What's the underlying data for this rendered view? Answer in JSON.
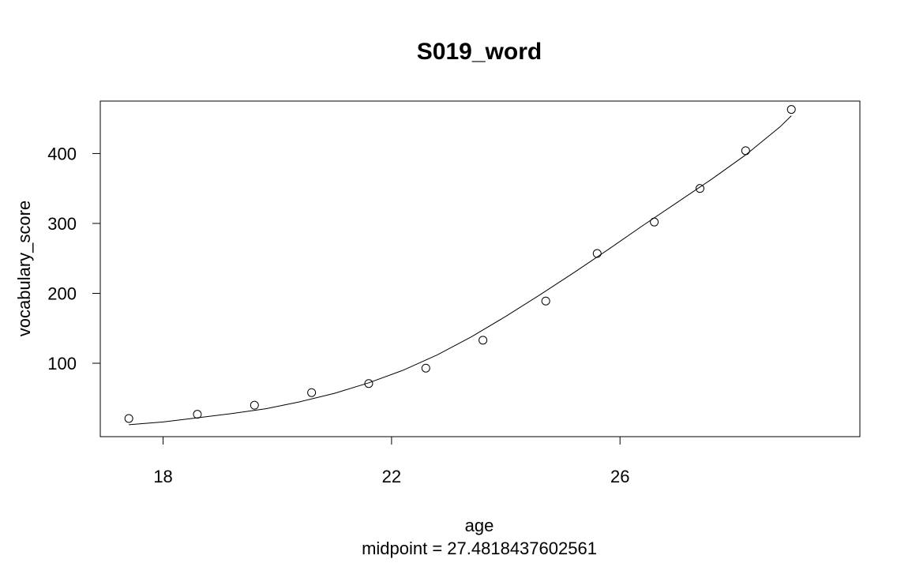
{
  "chart_data": {
    "type": "scatter",
    "title": "S019_word",
    "xlabel": "age",
    "ylabel": "vocabulary_score",
    "subtitle": "midpoint = 27.4818437602561",
    "xlim": [
      16.9,
      30.2
    ],
    "ylim": [
      -5,
      475
    ],
    "x_ticks": [
      18,
      22,
      26
    ],
    "y_ticks": [
      100,
      200,
      300,
      400
    ],
    "grid": false,
    "legend": "none",
    "points": {
      "x": [
        17.4,
        18.6,
        19.6,
        20.6,
        21.6,
        22.6,
        23.6,
        24.7,
        25.6,
        26.6,
        27.4,
        28.2,
        29.0
      ],
      "y": [
        21,
        27,
        40,
        58,
        71,
        93,
        133,
        189,
        257,
        302,
        350,
        404,
        463
      ]
    },
    "fit_line": {
      "x": [
        17.4,
        18.0,
        18.6,
        19.2,
        19.8,
        20.4,
        21.0,
        21.6,
        22.2,
        22.8,
        23.4,
        24.0,
        24.6,
        25.2,
        25.8,
        26.4,
        27.0,
        27.6,
        28.2,
        28.8,
        29.0
      ],
      "y": [
        12,
        16,
        22,
        28,
        35,
        45,
        57,
        72,
        90,
        112,
        138,
        167,
        198,
        230,
        263,
        297,
        330,
        363,
        398,
        438,
        454
      ]
    },
    "colors": {
      "points": "#000000",
      "line": "#000000",
      "axis": "#000000"
    }
  }
}
